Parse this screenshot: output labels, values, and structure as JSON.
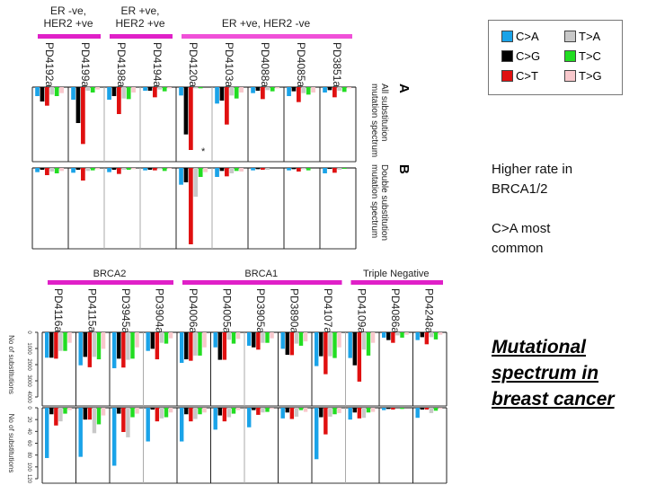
{
  "legend": {
    "items": [
      {
        "label": "C>A",
        "color": "#1aa3e8"
      },
      {
        "label": "C>G",
        "color": "#000000"
      },
      {
        "label": "C>T",
        "color": "#e01010"
      },
      {
        "label": "T>A",
        "color": "#c8c8c8"
      },
      {
        "label": "T>C",
        "color": "#22dd22"
      },
      {
        "label": "T>G",
        "color": "#f8c8cc"
      }
    ]
  },
  "notes": {
    "line1": "Higher rate in",
    "line2": "BRCA1/2",
    "line3": "C>A most",
    "line4": "common"
  },
  "slide_title": {
    "line1": "Mutational",
    "line2": "spectrum in",
    "line3": "breast cancer"
  },
  "chart_data": [
    {
      "type": "bar",
      "panel": "A",
      "panel_label": "A",
      "side_label": [
        "All substitution",
        "mutation spectrum"
      ],
      "value_scale": "relative (no axis printed)",
      "groups": [
        {
          "name": [
            "ER -ve,",
            "HER2 +ve"
          ],
          "color": "#e020c8",
          "samples": [
            "PD4192a",
            "PD4199a"
          ]
        },
        {
          "name": [
            "ER +ve,",
            "HER2 +ve"
          ],
          "color": "#e020c8",
          "samples": [
            "PD4198a",
            "PD4194a"
          ]
        },
        {
          "name": [
            "ER +ve, HER2 -ve"
          ],
          "color": "#f050d8",
          "samples": [
            "PD4120a",
            "PD4103a",
            "PD4088a",
            "PD4085a",
            "PD3851a"
          ]
        }
      ],
      "categories": [
        "C>A",
        "C>G",
        "C>T",
        "T>A",
        "T>C",
        "T>G"
      ],
      "annotation": "*",
      "series": {
        "PD4192a": [
          30,
          48,
          62,
          25,
          30,
          20
        ],
        "PD4199a": [
          42,
          120,
          190,
          12,
          18,
          8
        ],
        "PD4198a": [
          42,
          30,
          90,
          38,
          40,
          18
        ],
        "PD4194a": [
          12,
          12,
          34,
          8,
          14,
          4
        ],
        "PD4120a": [
          28,
          158,
          210,
          4,
          4,
          0
        ],
        "PD4103a": [
          55,
          45,
          125,
          28,
          38,
          18
        ],
        "PD4088a": [
          20,
          12,
          40,
          10,
          14,
          4
        ],
        "PD4085a": [
          30,
          14,
          50,
          20,
          25,
          18
        ],
        "PD3851a": [
          18,
          10,
          34,
          12,
          16,
          4
        ]
      }
    },
    {
      "type": "bar",
      "panel": "B",
      "panel_label": "B",
      "side_label": [
        "Double substitution",
        "mutation spectrum"
      ],
      "value_scale": "relative (no axis printed)",
      "categories": [
        "C>A",
        "C>G",
        "C>T",
        "T>A",
        "T>C",
        "T>G"
      ],
      "series": {
        "PD4192a": [
          14,
          6,
          24,
          12,
          18,
          10
        ],
        "PD4199a": [
          16,
          6,
          42,
          10,
          8,
          4
        ],
        "PD4198a": [
          14,
          6,
          20,
          6,
          6,
          4
        ],
        "PD4194a": [
          8,
          6,
          8,
          4,
          10,
          2
        ],
        "PD4120a": [
          56,
          48,
          255,
          96,
          30,
          14
        ],
        "PD4103a": [
          30,
          10,
          28,
          18,
          10,
          12
        ],
        "PD4088a": [
          8,
          4,
          6,
          6,
          0,
          0
        ],
        "PD4085a": [
          8,
          4,
          12,
          4,
          8,
          0
        ],
        "PD3851a": [
          18,
          2,
          16,
          6,
          2,
          0
        ]
      }
    },
    {
      "type": "bar",
      "panel": "bottom-upper",
      "ylabel": "No of substitutions",
      "ylim": [
        0,
        4000
      ],
      "yticks": [
        "0",
        "1000",
        "2000",
        "3000",
        "4000"
      ],
      "groups": [
        {
          "name": [
            "BRCA2"
          ],
          "color": "#e020c8",
          "samples": [
            "PD4116a",
            "PD4115a",
            "PD3945a",
            "PD3904a"
          ]
        },
        {
          "name": [
            "BRCA1"
          ],
          "color": "#e020c8",
          "samples": [
            "PD4006a",
            "PD4005a",
            "PD3905a",
            "PD3890a",
            "PD4107a"
          ]
        },
        {
          "name": [
            "Triple Negative"
          ],
          "color": "#e020c8",
          "samples": [
            "PD4109a",
            "PD4086a",
            "PD4248a"
          ]
        }
      ],
      "categories": [
        "C>A",
        "C>G",
        "C>T",
        "T>A",
        "T>C",
        "T>G"
      ],
      "series": {
        "PD4116a": [
          1570,
          1570,
          1630,
          1150,
          1150,
          650
        ],
        "PD4115a": [
          2040,
          1520,
          2160,
          1520,
          1670,
          1020
        ],
        "PD3945a": [
          2220,
          1630,
          2180,
          1700,
          1630,
          930
        ],
        "PD3904a": [
          1150,
          1020,
          1670,
          650,
          700,
          370
        ],
        "PD4006a": [
          1890,
          1670,
          1760,
          1440,
          1440,
          930
        ],
        "PD4005a": [
          930,
          1700,
          1700,
          460,
          700,
          410
        ],
        "PD3905a": [
          830,
          930,
          1070,
          650,
          650,
          370
        ],
        "PD3890a": [
          1020,
          1390,
          1410,
          700,
          830,
          560
        ],
        "PD4107a": [
          2090,
          1480,
          2590,
          1480,
          1590,
          930
        ],
        "PD4109a": [
          1590,
          2040,
          3050,
          1070,
          1440,
          650
        ],
        "PD4086a": [
          330,
          480,
          650,
          190,
          330,
          150
        ],
        "PD4248a": [
          480,
          300,
          740,
          300,
          440,
          150
        ]
      }
    },
    {
      "type": "bar",
      "panel": "bottom-lower",
      "ylabel": "No of substitutions",
      "ylim": [
        0,
        120
      ],
      "yticks": [
        "0",
        "20",
        "40",
        "60",
        "80",
        "100",
        "120"
      ],
      "categories": [
        "C>A",
        "C>G",
        "C>T",
        "T>A",
        "T>C",
        "T>G"
      ],
      "series": {
        "PD4116a": [
          85,
          11,
          30,
          23,
          10,
          4
        ],
        "PD4115a": [
          83,
          20,
          20,
          43,
          28,
          13
        ],
        "PD3945a": [
          98,
          10,
          41,
          50,
          16,
          10
        ],
        "PD3904a": [
          57,
          3,
          23,
          18,
          16,
          8
        ],
        "PD4006a": [
          57,
          11,
          23,
          19,
          11,
          8
        ],
        "PD4005a": [
          37,
          13,
          23,
          16,
          10,
          4
        ],
        "PD3905a": [
          33,
          4,
          12,
          8,
          7,
          2
        ],
        "PD3890a": [
          18,
          8,
          19,
          15,
          4,
          7
        ],
        "PD4107a": [
          87,
          16,
          45,
          15,
          11,
          9
        ],
        "PD4109a": [
          20,
          8,
          18,
          17,
          8,
          7
        ],
        "PD4086a": [
          4,
          2,
          3,
          0,
          2,
          0
        ],
        "PD4248a": [
          17,
          3,
          3,
          9,
          5,
          2
        ]
      }
    }
  ]
}
